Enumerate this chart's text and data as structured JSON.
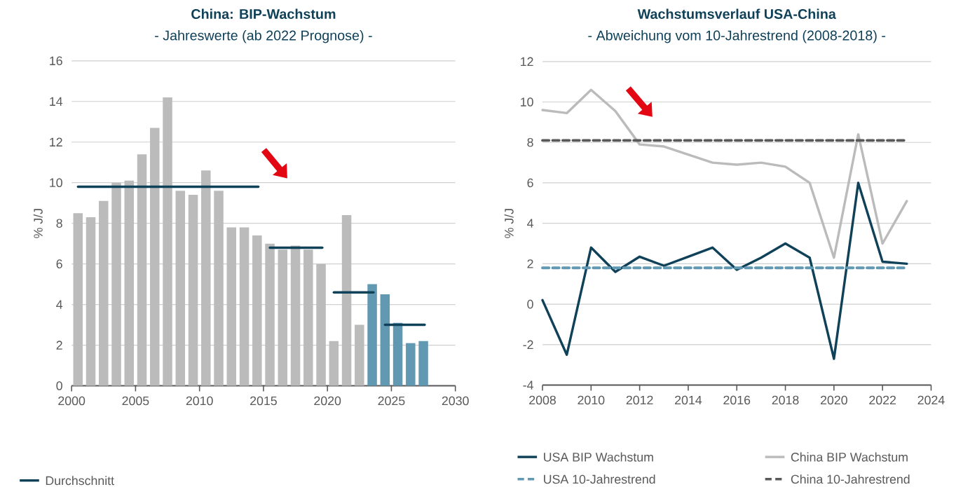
{
  "chart_data": [
    {
      "type": "bar",
      "title": "China: BIP-Wachstum",
      "subtitle": "- Jahreswerte (ab 2022 Prognose) -",
      "ylabel": "% J/J",
      "xlim": [
        2000,
        2030
      ],
      "xticks": [
        2000,
        2005,
        2010,
        2015,
        2020,
        2025,
        2030
      ],
      "ylim": [
        0,
        16
      ],
      "yticks": [
        0,
        2,
        4,
        6,
        8,
        10,
        12,
        14,
        16
      ],
      "grid": "y",
      "legend": "bottom left",
      "x": [
        2000.5,
        2001.5,
        2002.5,
        2003.5,
        2004.5,
        2005.5,
        2006.5,
        2007.5,
        2008.5,
        2009.5,
        2010.5,
        2011.5,
        2012.5,
        2013.5,
        2014.5,
        2015.5,
        2016.5,
        2017.5,
        2018.5,
        2019.5,
        2020.5,
        2021.5,
        2022.5,
        2023.5,
        2024.5,
        2025.5,
        2026.5,
        2027.5
      ],
      "series": [
        {
          "values": [
            8.5,
            8.3,
            9.1,
            10.0,
            10.1,
            11.4,
            12.7,
            14.2,
            9.6,
            9.4,
            10.6,
            9.6,
            7.8,
            7.8,
            7.4,
            7.0,
            6.7,
            6.9,
            6.7,
            6.0,
            2.2,
            8.4,
            3.0,
            5.0,
            4.5,
            3.1,
            2.1,
            2.2
          ],
          "colors": [
            "#bcbbbc",
            "#bcbbbc",
            "#bcbbbc",
            "#bcbbbc",
            "#bcbbbc",
            "#bcbbbc",
            "#bcbbbc",
            "#bcbbbc",
            "#bcbbbc",
            "#bcbbbc",
            "#bcbbbc",
            "#bcbbbc",
            "#bcbbbc",
            "#bcbbbc",
            "#bcbbbc",
            "#bcbbbc",
            "#bcbbbc",
            "#bcbbbc",
            "#bcbbbc",
            "#bcbbbc",
            "#bcbbbc",
            "#bcbbbc",
            "#bcbbbc",
            "#6199b3",
            "#6199b3",
            "#6199b3",
            "#6199b3",
            "#6199b3"
          ]
        },
        {
          "type": "line",
          "name": "Durchschnitt",
          "color": "#0f4159",
          "x": [
            2000.5,
            2014.6
          ],
          "values": [
            9.8,
            9.8
          ]
        },
        {
          "type": "line",
          "color": "#0f4159",
          "x": [
            2015.5,
            2019.6
          ],
          "values": [
            6.8,
            6.8
          ]
        },
        {
          "type": "line",
          "color": "#0f4159",
          "x": [
            2020.5,
            2023.6
          ],
          "values": [
            4.6,
            4.6
          ]
        },
        {
          "type": "line",
          "color": "#0f4159",
          "x": [
            2024.5,
            2027.6
          ],
          "values": [
            3.0,
            3.0
          ]
        }
      ]
    },
    {
      "type": "line",
      "title": "Wachstumsverlauf USA-China",
      "subtitle": "- Abweichung vom 10-Jahrestrend (2008-2018) -",
      "ylabel": "% J/J",
      "xlim": [
        2008,
        2024
      ],
      "xticks": [
        2008,
        2010,
        2012,
        2014,
        2016,
        2018,
        2020,
        2022,
        2024
      ],
      "ylim": [
        -4,
        12
      ],
      "yticks": [
        -4,
        -2,
        0,
        2,
        4,
        6,
        8,
        10,
        12
      ],
      "grid": "y",
      "legend": "bottom",
      "x": [
        2008,
        2009,
        2010,
        2011,
        2012,
        2013,
        2014,
        2015,
        2016,
        2017,
        2018,
        2019,
        2020,
        2021,
        2022,
        2023
      ],
      "series": [
        {
          "name": "USA BIP Wachstum",
          "color": "#0f4159",
          "values": [
            0.2,
            -2.5,
            2.8,
            1.6,
            2.35,
            1.9,
            2.35,
            2.8,
            1.7,
            2.3,
            3.0,
            2.3,
            -2.7,
            6.0,
            2.1,
            2.0
          ]
        },
        {
          "name": "China BIP Wachstum",
          "color": "#bcbbbc",
          "values": [
            9.6,
            9.45,
            10.6,
            9.55,
            7.9,
            7.8,
            7.4,
            7.0,
            6.9,
            7.0,
            6.8,
            6.0,
            2.3,
            8.4,
            3.0,
            5.1
          ]
        },
        {
          "name": "USA 10-Jahrestrend",
          "color": "#6199b3",
          "line_style": "dashed",
          "x": [
            2008,
            2023
          ],
          "values": [
            1.8,
            1.8
          ]
        },
        {
          "name": "China 10-Jahrestrend",
          "color": "#595959",
          "line_style": "dashed",
          "x": [
            2008,
            2023
          ],
          "values": [
            8.1,
            8.1
          ]
        }
      ]
    }
  ]
}
